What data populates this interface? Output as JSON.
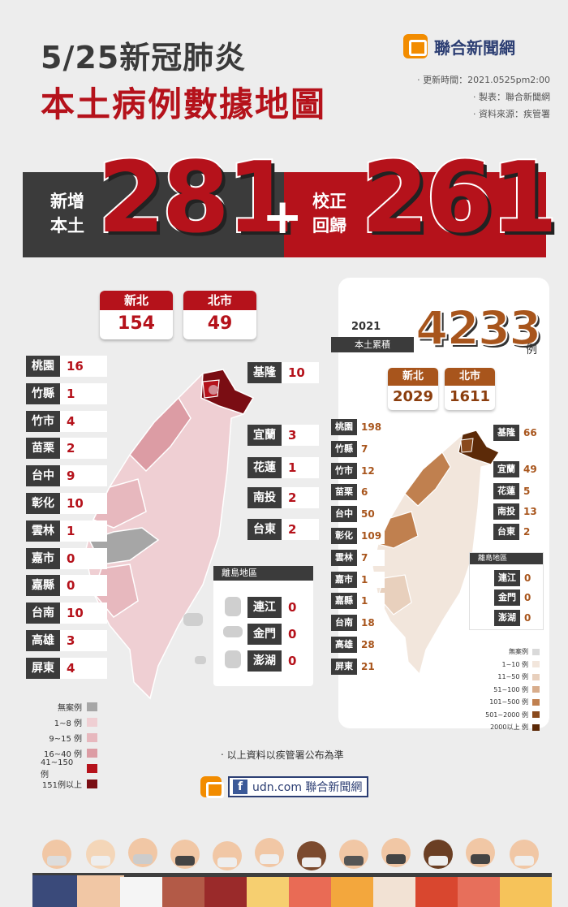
{
  "header": {
    "title_line1": "5/25新冠肺炎",
    "title_line2": "本土病例數據地圖",
    "brand": "聯合新聞網",
    "updated": "‧ 更新時間：2021.0525pm2:00",
    "made_by": "‧ 製表：聯合新聞網",
    "source": "‧ 資料來源：疾管署"
  },
  "banner": {
    "left_label_1": "新增",
    "left_label_2": "本土",
    "left_value": "281",
    "plus": "+",
    "right_label_1": "校正",
    "right_label_2": "回歸",
    "right_value": "261"
  },
  "today": {
    "top_cards": [
      {
        "name": "新北",
        "value": "154"
      },
      {
        "name": "北市",
        "value": "49"
      }
    ],
    "left_list": [
      {
        "name": "桃園",
        "value": "16"
      },
      {
        "name": "竹縣",
        "value": "1"
      },
      {
        "name": "竹市",
        "value": "4"
      },
      {
        "name": "苗栗",
        "value": "2"
      },
      {
        "name": "台中",
        "value": "9"
      },
      {
        "name": "彰化",
        "value": "10"
      },
      {
        "name": "雲林",
        "value": "1"
      },
      {
        "name": "嘉市",
        "value": "0"
      },
      {
        "name": "嘉縣",
        "value": "0"
      },
      {
        "name": "台南",
        "value": "10"
      },
      {
        "name": "高雄",
        "value": "3"
      },
      {
        "name": "屏東",
        "value": "4"
      }
    ],
    "right_list": [
      {
        "name": "基隆",
        "value": "10"
      },
      {
        "name": "宜蘭",
        "value": "3"
      },
      {
        "name": "花蓮",
        "value": "1"
      },
      {
        "name": "南投",
        "value": "2"
      },
      {
        "name": "台東",
        "value": "2"
      }
    ],
    "islands_title": "離島地區",
    "islands": [
      {
        "name": "連江",
        "value": "0"
      },
      {
        "name": "金門",
        "value": "0"
      },
      {
        "name": "澎湖",
        "value": "0"
      }
    ],
    "legend": [
      {
        "label": "無案例",
        "color": "#a6a6a6"
      },
      {
        "label": "1~8 例",
        "color": "#efcfd3"
      },
      {
        "label": "9~15 例",
        "color": "#e7b8be"
      },
      {
        "label": "16~40 例",
        "color": "#dc9ca4"
      },
      {
        "label": "41~150 例",
        "color": "#b5121b"
      },
      {
        "label": "151例以上",
        "color": "#7a0d13"
      }
    ]
  },
  "cumulative": {
    "year": "2021",
    "label": "本土累積",
    "total": "4233",
    "unit": "例",
    "top_cards": [
      {
        "name": "新北",
        "value": "2029"
      },
      {
        "name": "北市",
        "value": "1611"
      }
    ],
    "left_list": [
      {
        "name": "桃園",
        "value": "198"
      },
      {
        "name": "竹縣",
        "value": "7"
      },
      {
        "name": "竹市",
        "value": "12"
      },
      {
        "name": "苗栗",
        "value": "6"
      },
      {
        "name": "台中",
        "value": "50"
      },
      {
        "name": "彰化",
        "value": "109"
      },
      {
        "name": "雲林",
        "value": "7"
      },
      {
        "name": "嘉市",
        "value": "1"
      },
      {
        "name": "嘉縣",
        "value": "1"
      },
      {
        "name": "台南",
        "value": "18"
      },
      {
        "name": "高雄",
        "value": "28"
      },
      {
        "name": "屏東",
        "value": "21"
      }
    ],
    "right_list": [
      {
        "name": "基隆",
        "value": "66"
      },
      {
        "name": "宜蘭",
        "value": "49"
      },
      {
        "name": "花蓮",
        "value": "5"
      },
      {
        "name": "南投",
        "value": "13"
      },
      {
        "name": "台東",
        "value": "2"
      }
    ],
    "islands_title": "離島地區",
    "islands": [
      {
        "name": "連江",
        "value": "0"
      },
      {
        "name": "金門",
        "value": "0"
      },
      {
        "name": "澎湖",
        "value": "0"
      }
    ],
    "legend": [
      {
        "label": "無案例",
        "color": "#d9d9d9"
      },
      {
        "label": "1~10 例",
        "color": "#f2e6dc"
      },
      {
        "label": "11~50 例",
        "color": "#e8d0bd"
      },
      {
        "label": "51~100 例",
        "color": "#d8ad8c"
      },
      {
        "label": "101~500 例",
        "color": "#c0804f"
      },
      {
        "label": "501~2000 例",
        "color": "#8a4a1c"
      },
      {
        "label": "2000以上 例",
        "color": "#5c2a08"
      }
    ]
  },
  "footer": {
    "note": "‧ 以上資料以疾管署公布為準",
    "facebook": "f",
    "site": "udn.com 聯合新聞網"
  }
}
